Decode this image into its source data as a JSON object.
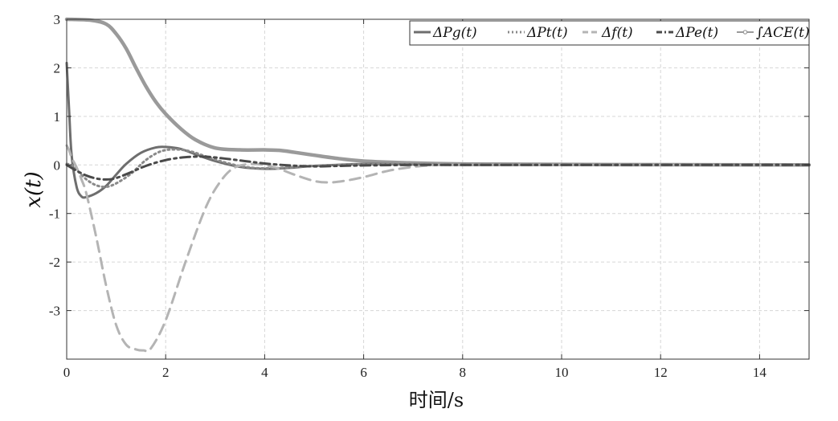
{
  "chart_data": {
    "type": "line",
    "xlabel": "时间/s",
    "ylabel": "x(t)",
    "xlim": [
      0,
      15
    ],
    "ylim": [
      -4,
      3
    ],
    "xticks": [
      0,
      2,
      4,
      6,
      8,
      10,
      12,
      14
    ],
    "yticks": [
      -3,
      -2,
      -1,
      0,
      1,
      2,
      3
    ],
    "grid": true,
    "legend_position": "top-right",
    "series": [
      {
        "name": "ΔPg(t)",
        "color": "#6e6e6e",
        "style": "solid",
        "x": [
          0,
          0.05,
          0.1,
          0.2,
          0.3,
          0.4,
          0.6,
          0.8,
          1.0,
          1.2,
          1.5,
          1.8,
          2.0,
          2.3,
          2.6,
          3.0,
          3.5,
          4.0,
          4.5,
          5.0,
          6.0,
          7.0,
          8.0,
          10.0,
          15.0
        ],
        "y": [
          2.1,
          1.1,
          0.2,
          -0.45,
          -0.65,
          -0.66,
          -0.58,
          -0.43,
          -0.2,
          0.02,
          0.25,
          0.36,
          0.37,
          0.33,
          0.22,
          0.08,
          -0.04,
          -0.08,
          -0.06,
          -0.02,
          0.02,
          0.01,
          0.0,
          0.0,
          0.0
        ]
      },
      {
        "name": "ΔPt(t)",
        "color": "#8a8a8a",
        "style": "dotted",
        "x": [
          0,
          0.1,
          0.2,
          0.4,
          0.6,
          0.8,
          1.0,
          1.3,
          1.6,
          1.9,
          2.2,
          2.5,
          2.8,
          3.2,
          3.6,
          4.0,
          4.5,
          5.0,
          6.0,
          7.0,
          8.0,
          10.0,
          15.0
        ],
        "y": [
          0.02,
          0.0,
          -0.1,
          -0.3,
          -0.42,
          -0.45,
          -0.38,
          -0.18,
          0.1,
          0.28,
          0.32,
          0.28,
          0.18,
          0.05,
          -0.04,
          -0.07,
          -0.05,
          -0.02,
          0.01,
          0.01,
          0.0,
          0.0,
          0.0
        ]
      },
      {
        "name": "Δf(t)",
        "color": "#b4b4b4",
        "style": "dashed",
        "x": [
          0,
          0.05,
          0.1,
          0.2,
          0.3,
          0.4,
          0.6,
          0.8,
          1.0,
          1.2,
          1.4,
          1.55,
          1.7,
          2.0,
          2.4,
          2.8,
          3.1,
          3.4,
          3.8,
          4.2,
          4.6,
          5.0,
          5.3,
          5.6,
          6.0,
          6.5,
          7.0,
          7.5,
          8.0,
          10.0,
          15.0
        ],
        "y": [
          0.4,
          0.3,
          0.15,
          -0.05,
          -0.3,
          -0.6,
          -1.5,
          -2.5,
          -3.3,
          -3.7,
          -3.8,
          -3.82,
          -3.78,
          -3.2,
          -2.0,
          -0.9,
          -0.35,
          -0.05,
          0.02,
          -0.05,
          -0.2,
          -0.33,
          -0.36,
          -0.33,
          -0.25,
          -0.12,
          -0.04,
          0.0,
          0.0,
          0.0,
          0.0
        ]
      },
      {
        "name": "ΔPe(t)",
        "color": "#4a4a4a",
        "style": "dashdot",
        "x": [
          0,
          0.2,
          0.4,
          0.6,
          0.8,
          1.0,
          1.3,
          1.6,
          2.0,
          2.4,
          2.8,
          3.2,
          3.6,
          4.0,
          4.5,
          5.0,
          5.5,
          6.0,
          7.0,
          8.0,
          10.0,
          15.0
        ],
        "y": [
          0.0,
          -0.12,
          -0.22,
          -0.28,
          -0.3,
          -0.27,
          -0.15,
          -0.02,
          0.1,
          0.16,
          0.17,
          0.13,
          0.08,
          0.03,
          -0.01,
          -0.03,
          -0.02,
          -0.01,
          0.0,
          0.0,
          0.0,
          0.0
        ]
      },
      {
        "name": "∫ACE(t)",
        "color": "#9a9a9a",
        "style": "solid-thick",
        "x": [
          0,
          0.5,
          0.8,
          1.0,
          1.2,
          1.4,
          1.6,
          1.8,
          2.0,
          2.3,
          2.6,
          3.0,
          3.5,
          4.0,
          4.3,
          4.6,
          5.0,
          5.5,
          6.0,
          7.0,
          8.0,
          10.0,
          15.0
        ],
        "y": [
          3.0,
          2.98,
          2.9,
          2.7,
          2.4,
          2.0,
          1.62,
          1.3,
          1.05,
          0.75,
          0.52,
          0.35,
          0.31,
          0.31,
          0.3,
          0.26,
          0.2,
          0.13,
          0.08,
          0.04,
          0.02,
          0.01,
          0.0
        ]
      }
    ]
  }
}
